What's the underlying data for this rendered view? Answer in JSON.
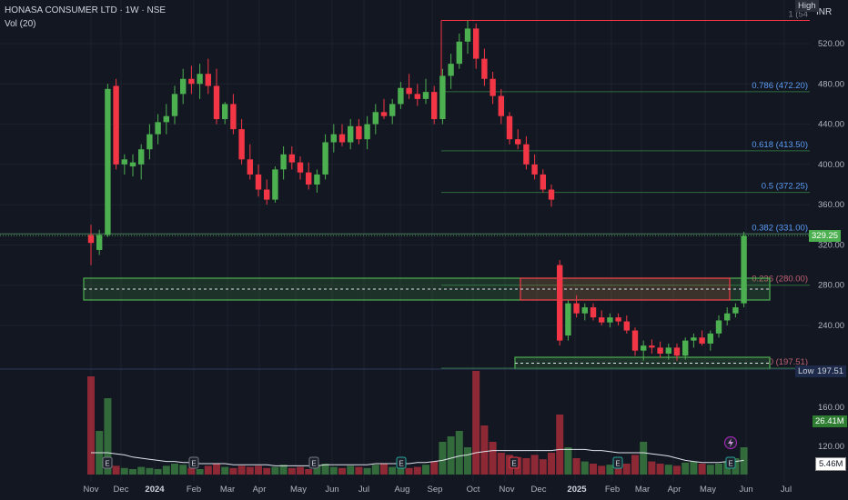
{
  "header": {
    "symbol_line": "HONASA CONSUMER LTD · 1W · NSE",
    "volume_indicator": "Vol (20)"
  },
  "price_axis": {
    "currency": "INR",
    "tick_labels": [
      "520.00",
      "480.00",
      "440.00",
      "400.00",
      "360.00",
      "320.00",
      "280.00",
      "240.00"
    ],
    "volume_tick_labels": [
      "160.00",
      "120.00"
    ]
  },
  "time_axis": {
    "labels": [
      "Nov",
      "Dec",
      "2024",
      "Feb",
      "Mar",
      "Apr",
      "May",
      "Jun",
      "Jul",
      "Aug",
      "Sep",
      "Oct",
      "Nov",
      "Dec",
      "2025",
      "Feb",
      "Mar",
      "Apr",
      "May",
      "Jun",
      "Jul"
    ]
  },
  "price_labels": {
    "last_price": "329.25",
    "high_tag": "High",
    "low_tag": "Low",
    "low_value": "197.51",
    "volume_last": "26.41M",
    "volume_ma": "5.46M"
  },
  "fibonacci": {
    "levels": [
      {
        "ratio": "1",
        "label": "1 (54",
        "value": 543.0
      },
      {
        "ratio": "0.786",
        "label": "0.786 (472.20)",
        "value": 472.2
      },
      {
        "ratio": "0.618",
        "label": "0.618 (413.50)",
        "value": 413.5
      },
      {
        "ratio": "0.5",
        "label": "0.5 (372.25)",
        "value": 372.25
      },
      {
        "ratio": "0.382",
        "label": "0.382 (331.00)",
        "value": 331.0
      },
      {
        "ratio": "0.236",
        "label": "0.236 (280.00)",
        "value": 280.0
      },
      {
        "ratio": "0",
        "label": "0 (197.51)",
        "value": 197.51
      }
    ]
  },
  "zones": [
    {
      "name": "upper-support-zone",
      "top": 287,
      "bottom": 265,
      "color": "#4caf50"
    },
    {
      "name": "resistance-zone",
      "top": 287,
      "bottom": 265,
      "color": "#f23645"
    },
    {
      "name": "bottom-support-zone",
      "top": 202,
      "bottom": 195,
      "color": "#4caf50"
    }
  ],
  "event_markers": {
    "earnings_label": "E",
    "dividend_icon": "lightning-icon"
  },
  "colors": {
    "background": "#131722",
    "up": "#4caf50",
    "down": "#f23645",
    "fib_line": "#2e6b3e",
    "fib_text": "#5b9cf6",
    "ma_line": "#e0e3eb"
  },
  "chart_data": {
    "type": "candlestick",
    "title": "HONASA CONSUMER LTD · 1W · NSE",
    "ylim": [
      190,
      545
    ],
    "candles": [
      {
        "o": 330,
        "h": 340,
        "l": 300,
        "c": 322
      },
      {
        "o": 315,
        "h": 335,
        "l": 310,
        "c": 330
      },
      {
        "o": 330,
        "h": 480,
        "l": 328,
        "c": 475
      },
      {
        "o": 478,
        "h": 485,
        "l": 395,
        "c": 400
      },
      {
        "o": 400,
        "h": 410,
        "l": 390,
        "c": 405
      },
      {
        "o": 398,
        "h": 410,
        "l": 388,
        "c": 402
      },
      {
        "o": 400,
        "h": 420,
        "l": 385,
        "c": 415
      },
      {
        "o": 415,
        "h": 440,
        "l": 405,
        "c": 430
      },
      {
        "o": 430,
        "h": 450,
        "l": 420,
        "c": 442
      },
      {
        "o": 442,
        "h": 460,
        "l": 430,
        "c": 448
      },
      {
        "o": 448,
        "h": 478,
        "l": 440,
        "c": 470
      },
      {
        "o": 470,
        "h": 495,
        "l": 460,
        "c": 485
      },
      {
        "o": 485,
        "h": 498,
        "l": 470,
        "c": 480
      },
      {
        "o": 480,
        "h": 500,
        "l": 465,
        "c": 490
      },
      {
        "o": 490,
        "h": 505,
        "l": 470,
        "c": 478
      },
      {
        "o": 478,
        "h": 495,
        "l": 440,
        "c": 445
      },
      {
        "o": 445,
        "h": 462,
        "l": 440,
        "c": 460
      },
      {
        "o": 460,
        "h": 470,
        "l": 430,
        "c": 435
      },
      {
        "o": 435,
        "h": 445,
        "l": 400,
        "c": 405
      },
      {
        "o": 405,
        "h": 420,
        "l": 385,
        "c": 390
      },
      {
        "o": 390,
        "h": 400,
        "l": 368,
        "c": 375
      },
      {
        "o": 375,
        "h": 385,
        "l": 360,
        "c": 365
      },
      {
        "o": 365,
        "h": 398,
        "l": 362,
        "c": 395
      },
      {
        "o": 395,
        "h": 418,
        "l": 385,
        "c": 410
      },
      {
        "o": 410,
        "h": 418,
        "l": 395,
        "c": 402
      },
      {
        "o": 402,
        "h": 408,
        "l": 385,
        "c": 392
      },
      {
        "o": 392,
        "h": 402,
        "l": 375,
        "c": 380
      },
      {
        "o": 380,
        "h": 395,
        "l": 372,
        "c": 390
      },
      {
        "o": 390,
        "h": 430,
        "l": 385,
        "c": 422
      },
      {
        "o": 422,
        "h": 440,
        "l": 412,
        "c": 430
      },
      {
        "o": 430,
        "h": 440,
        "l": 418,
        "c": 422
      },
      {
        "o": 422,
        "h": 445,
        "l": 415,
        "c": 438
      },
      {
        "o": 438,
        "h": 445,
        "l": 420,
        "c": 425
      },
      {
        "o": 425,
        "h": 448,
        "l": 415,
        "c": 440
      },
      {
        "o": 440,
        "h": 460,
        "l": 430,
        "c": 452
      },
      {
        "o": 452,
        "h": 465,
        "l": 445,
        "c": 448
      },
      {
        "o": 448,
        "h": 465,
        "l": 440,
        "c": 460
      },
      {
        "o": 460,
        "h": 482,
        "l": 455,
        "c": 476
      },
      {
        "o": 476,
        "h": 490,
        "l": 465,
        "c": 470
      },
      {
        "o": 470,
        "h": 480,
        "l": 458,
        "c": 465
      },
      {
        "o": 465,
        "h": 485,
        "l": 460,
        "c": 472
      },
      {
        "o": 472,
        "h": 478,
        "l": 440,
        "c": 445
      },
      {
        "o": 445,
        "h": 495,
        "l": 440,
        "c": 488
      },
      {
        "o": 488,
        "h": 510,
        "l": 475,
        "c": 500
      },
      {
        "o": 500,
        "h": 530,
        "l": 495,
        "c": 522
      },
      {
        "o": 522,
        "h": 543,
        "l": 510,
        "c": 535
      },
      {
        "o": 535,
        "h": 540,
        "l": 495,
        "c": 505
      },
      {
        "o": 505,
        "h": 515,
        "l": 478,
        "c": 485
      },
      {
        "o": 485,
        "h": 492,
        "l": 460,
        "c": 468
      },
      {
        "o": 468,
        "h": 475,
        "l": 440,
        "c": 448
      },
      {
        "o": 448,
        "h": 452,
        "l": 420,
        "c": 425
      },
      {
        "o": 425,
        "h": 435,
        "l": 415,
        "c": 420
      },
      {
        "o": 420,
        "h": 428,
        "l": 395,
        "c": 400
      },
      {
        "o": 400,
        "h": 410,
        "l": 385,
        "c": 390
      },
      {
        "o": 390,
        "h": 395,
        "l": 372,
        "c": 375
      },
      {
        "o": 375,
        "h": 380,
        "l": 358,
        "c": 365
      },
      {
        "o": 300,
        "h": 305,
        "l": 220,
        "c": 225
      },
      {
        "o": 230,
        "h": 265,
        "l": 225,
        "c": 262
      },
      {
        "o": 262,
        "h": 270,
        "l": 248,
        "c": 252
      },
      {
        "o": 252,
        "h": 262,
        "l": 245,
        "c": 258
      },
      {
        "o": 258,
        "h": 262,
        "l": 245,
        "c": 248
      },
      {
        "o": 248,
        "h": 255,
        "l": 240,
        "c": 243
      },
      {
        "o": 243,
        "h": 252,
        "l": 238,
        "c": 248
      },
      {
        "o": 248,
        "h": 252,
        "l": 240,
        "c": 244
      },
      {
        "o": 244,
        "h": 250,
        "l": 232,
        "c": 235
      },
      {
        "o": 235,
        "h": 238,
        "l": 210,
        "c": 215
      },
      {
        "o": 215,
        "h": 225,
        "l": 205,
        "c": 220
      },
      {
        "o": 220,
        "h": 226,
        "l": 212,
        "c": 218
      },
      {
        "o": 218,
        "h": 224,
        "l": 208,
        "c": 212
      },
      {
        "o": 212,
        "h": 222,
        "l": 206,
        "c": 218
      },
      {
        "o": 218,
        "h": 222,
        "l": 205,
        "c": 210
      },
      {
        "o": 210,
        "h": 228,
        "l": 206,
        "c": 225
      },
      {
        "o": 225,
        "h": 232,
        "l": 218,
        "c": 228
      },
      {
        "o": 228,
        "h": 235,
        "l": 220,
        "c": 222
      },
      {
        "o": 222,
        "h": 235,
        "l": 215,
        "c": 232
      },
      {
        "o": 232,
        "h": 250,
        "l": 228,
        "c": 245
      },
      {
        "o": 245,
        "h": 258,
        "l": 240,
        "c": 252
      },
      {
        "o": 252,
        "h": 262,
        "l": 248,
        "c": 258
      },
      {
        "o": 262,
        "h": 333,
        "l": 258,
        "c": 329
      }
    ],
    "volume_relative": [
      90,
      40,
      70,
      8,
      6,
      5,
      7,
      6,
      5,
      8,
      10,
      9,
      6,
      5,
      8,
      10,
      7,
      6,
      8,
      7,
      8,
      6,
      7,
      9,
      6,
      7,
      5,
      8,
      10,
      7,
      6,
      8,
      7,
      6,
      9,
      10,
      7,
      8,
      6,
      7,
      9,
      12,
      30,
      35,
      40,
      25,
      95,
      45,
      30,
      20,
      18,
      16,
      15,
      18,
      14,
      20,
      55,
      25,
      15,
      12,
      10,
      8,
      9,
      8,
      10,
      18,
      30,
      12,
      10,
      9,
      8,
      11,
      12,
      10,
      9,
      10,
      12,
      15,
      25
    ],
    "volume_ma_relative": [
      20,
      20,
      20,
      19,
      18,
      16,
      15,
      14,
      13,
      12,
      12,
      11,
      11,
      10,
      10,
      10,
      10,
      9,
      9,
      9,
      9,
      9,
      8,
      8,
      8,
      8,
      8,
      8,
      9,
      9,
      9,
      9,
      9,
      9,
      10,
      10,
      10,
      10,
      10,
      11,
      11,
      12,
      13,
      15,
      17,
      18,
      20,
      21,
      22,
      22,
      22,
      22,
      22,
      22,
      22,
      22,
      23,
      23,
      23,
      23,
      22,
      22,
      21,
      20,
      20,
      20,
      20,
      19,
      18,
      17,
      15,
      13,
      12,
      11,
      11,
      11,
      12,
      12,
      13
    ]
  }
}
